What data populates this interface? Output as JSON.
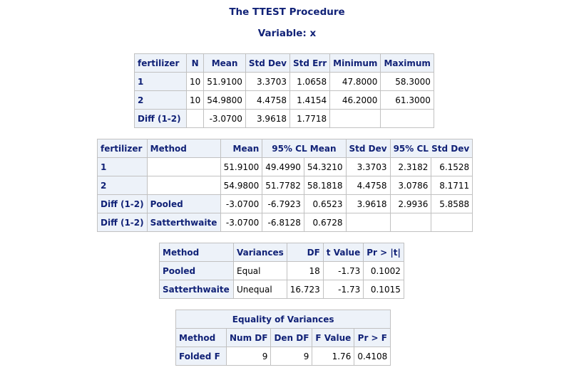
{
  "title": "The TTEST Procedure",
  "variable": "Variable:  x",
  "stats": {
    "headers": [
      "fertilizer",
      "N",
      "Mean",
      "Std Dev",
      "Std Err",
      "Minimum",
      "Maximum"
    ],
    "rows": [
      [
        "1",
        "10",
        "51.9100",
        "3.3703",
        "1.0658",
        "47.8000",
        "58.3000"
      ],
      [
        "2",
        "10",
        "54.9800",
        "4.4758",
        "1.4154",
        "46.2000",
        "61.3000"
      ],
      [
        "Diff (1-2)",
        "",
        "-3.0700",
        "3.9618",
        "1.7718",
        "",
        ""
      ]
    ]
  },
  "ci": {
    "headers": [
      "fertilizer",
      "Method",
      "Mean",
      "95% CL Mean",
      "Std Dev",
      "95% CL Std Dev"
    ],
    "rows": [
      [
        "1",
        "",
        "51.9100",
        "49.4990",
        "54.3210",
        "3.3703",
        "2.3182",
        "6.1528"
      ],
      [
        "2",
        "",
        "54.9800",
        "51.7782",
        "58.1818",
        "4.4758",
        "3.0786",
        "8.1711"
      ],
      [
        "Diff (1-2)",
        "Pooled",
        "-3.0700",
        "-6.7923",
        "0.6523",
        "3.9618",
        "2.9936",
        "5.8588"
      ],
      [
        "Diff (1-2)",
        "Satterthwaite",
        "-3.0700",
        "-6.8128",
        "0.6728",
        "",
        "",
        ""
      ]
    ]
  },
  "ttests": {
    "headers": [
      "Method",
      "Variances",
      "DF",
      "t Value",
      "Pr > |t|"
    ],
    "rows": [
      [
        "Pooled",
        "Equal",
        "18",
        "-1.73",
        "0.1002"
      ],
      [
        "Satterthwaite",
        "Unequal",
        "16.723",
        "-1.73",
        "0.1015"
      ]
    ]
  },
  "equality": {
    "caption": "Equality of Variances",
    "headers": [
      "Method",
      "Num DF",
      "Den DF",
      "F Value",
      "Pr > F"
    ],
    "rows": [
      [
        "Folded F",
        "9",
        "9",
        "1.76",
        "0.4108"
      ]
    ]
  }
}
